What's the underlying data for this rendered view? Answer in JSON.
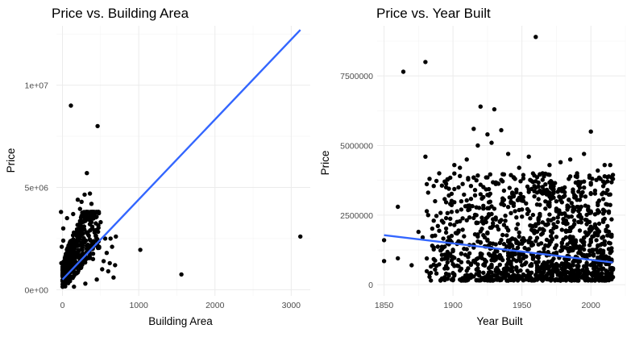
{
  "chart_data": [
    {
      "type": "scatter",
      "title": "Price vs. Building Area",
      "xlabel": "Building Area",
      "ylabel": "Price",
      "xlim": [
        -80,
        3250
      ],
      "ylim": [
        -300000,
        12900000
      ],
      "x_ticks": [
        0,
        1000,
        2000,
        3000
      ],
      "x_tick_labels": [
        "0",
        "1000",
        "2000",
        "3000"
      ],
      "y_ticks": [
        0,
        5000000,
        10000000
      ],
      "y_tick_labels": [
        "0e+00",
        "5e+06",
        "1e+07"
      ],
      "grid": true,
      "cloud": {
        "count": 430,
        "x_range": [
          0,
          480
        ],
        "y_range": [
          150000,
          3800000
        ]
      },
      "points": [
        [
          110,
          9000000
        ],
        [
          460,
          8000000
        ],
        [
          320,
          5700000
        ],
        [
          360,
          4700000
        ],
        [
          380,
          4200000
        ],
        [
          250,
          4300000
        ],
        [
          200,
          4400000
        ],
        [
          290,
          4650000
        ],
        [
          230,
          3950000
        ],
        [
          380,
          3300000
        ],
        [
          500,
          3300000
        ],
        [
          560,
          2500000
        ],
        [
          630,
          2500000
        ],
        [
          650,
          2100000
        ],
        [
          700,
          2600000
        ],
        [
          690,
          1200000
        ],
        [
          670,
          600000
        ],
        [
          600,
          900000
        ],
        [
          620,
          1300000
        ],
        [
          580,
          1800000
        ],
        [
          1020,
          1950000
        ],
        [
          1560,
          750000
        ],
        [
          3120,
          2600000
        ],
        [
          -20,
          3800000
        ],
        [
          10,
          3000000
        ],
        [
          -10,
          2100000
        ],
        [
          -15,
          1300000
        ],
        [
          0,
          700000
        ],
        [
          30,
          200000
        ],
        [
          150,
          150000
        ],
        [
          450,
          500000
        ],
        [
          520,
          1000000
        ],
        [
          400,
          1500000
        ],
        [
          300,
          300000
        ],
        [
          540,
          1400000
        ],
        [
          480,
          2100000
        ],
        [
          420,
          2800000
        ],
        [
          10,
          2400000
        ],
        [
          60,
          3500000
        ],
        [
          140,
          3700000
        ]
      ],
      "trend_line": {
        "x": [
          0,
          3120
        ],
        "y": [
          500000,
          12700000
        ]
      },
      "colors": {
        "points": "#000000",
        "trend_line": "#3366ff"
      }
    },
    {
      "type": "scatter",
      "title": "Price vs. Year Built",
      "xlabel": "Year Built",
      "ylabel": "Price",
      "xlim": [
        1845,
        2025
      ],
      "ylim": [
        -400000,
        9300000
      ],
      "x_ticks": [
        1850,
        1900,
        1950,
        2000
      ],
      "x_tick_labels": [
        "1850",
        "1900",
        "1950",
        "2000"
      ],
      "y_ticks": [
        0,
        2500000,
        5000000,
        7500000
      ],
      "y_tick_labels": [
        "0",
        "2500000",
        "5000000",
        "7500000"
      ],
      "grid": true,
      "cloud": {
        "count": 1300,
        "x_range": [
          1880,
          2016
        ],
        "y_range": [
          150000,
          4000000
        ]
      },
      "points": [
        [
          1960,
          8900000
        ],
        [
          1880,
          8000000
        ],
        [
          1864,
          7650000
        ],
        [
          1920,
          6400000
        ],
        [
          1930,
          6300000
        ],
        [
          1915,
          5600000
        ],
        [
          1935,
          5550000
        ],
        [
          1925,
          5400000
        ],
        [
          1901,
          4300000
        ],
        [
          1905,
          4200000
        ],
        [
          1910,
          4500000
        ],
        [
          1918,
          5000000
        ],
        [
          1928,
          5100000
        ],
        [
          1955,
          4600000
        ],
        [
          1948,
          4200000
        ],
        [
          1970,
          4300000
        ],
        [
          1985,
          4500000
        ],
        [
          1995,
          4700000
        ],
        [
          1978,
          4400000
        ],
        [
          2000,
          5500000
        ],
        [
          2010,
          4300000
        ],
        [
          2005,
          4100000
        ],
        [
          1965,
          4000000
        ],
        [
          1850,
          1600000
        ],
        [
          1850,
          850000
        ],
        [
          1860,
          950000
        ],
        [
          1860,
          2800000
        ],
        [
          1870,
          700000
        ],
        [
          1875,
          1900000
        ],
        [
          1878,
          1700000
        ],
        [
          1880,
          4600000
        ],
        [
          1890,
          4000000
        ],
        [
          1887,
          3000000
        ],
        [
          1882,
          2500000
        ],
        [
          1895,
          3500000
        ],
        [
          1940,
          4700000
        ],
        [
          1945,
          3800000
        ],
        [
          2016,
          3800000
        ],
        [
          2014,
          4300000
        ],
        [
          1990,
          4000000
        ]
      ],
      "trend_line": {
        "x": [
          1850,
          2016
        ],
        "y": [
          1780000,
          800000
        ]
      },
      "colors": {
        "points": "#000000",
        "trend_line": "#3366ff"
      }
    }
  ]
}
